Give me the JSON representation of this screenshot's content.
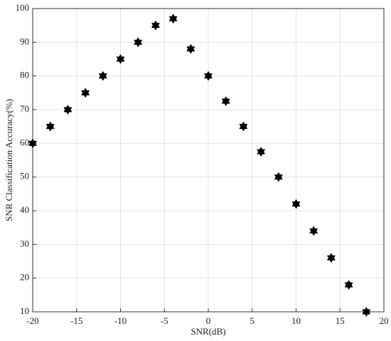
{
  "chart_data": {
    "type": "scatter",
    "x_label": "SNR(dB)",
    "y_label": "SNR Classification Accuracy(%)",
    "series": [
      {
        "color": "#000000",
        "x": [
          -20,
          -18,
          -16,
          -14,
          -12,
          -10,
          -8,
          -6,
          -4,
          -2,
          0,
          2,
          4,
          6,
          8,
          10,
          12,
          14,
          16,
          18
        ],
        "values": [
          60,
          65,
          70,
          75,
          80,
          85,
          90,
          95,
          97,
          88,
          80,
          72.5,
          65,
          57.5,
          50,
          42,
          34,
          26,
          18,
          10
        ]
      }
    ],
    "xlim": [
      -20,
      20
    ],
    "xticks": [
      -20,
      -15,
      -10,
      -5,
      0,
      5,
      10,
      15,
      20
    ],
    "ylim": [
      10,
      100
    ],
    "yticks": [
      10,
      20,
      30,
      40,
      50,
      60,
      70,
      80,
      90,
      100
    ],
    "grid": true
  }
}
